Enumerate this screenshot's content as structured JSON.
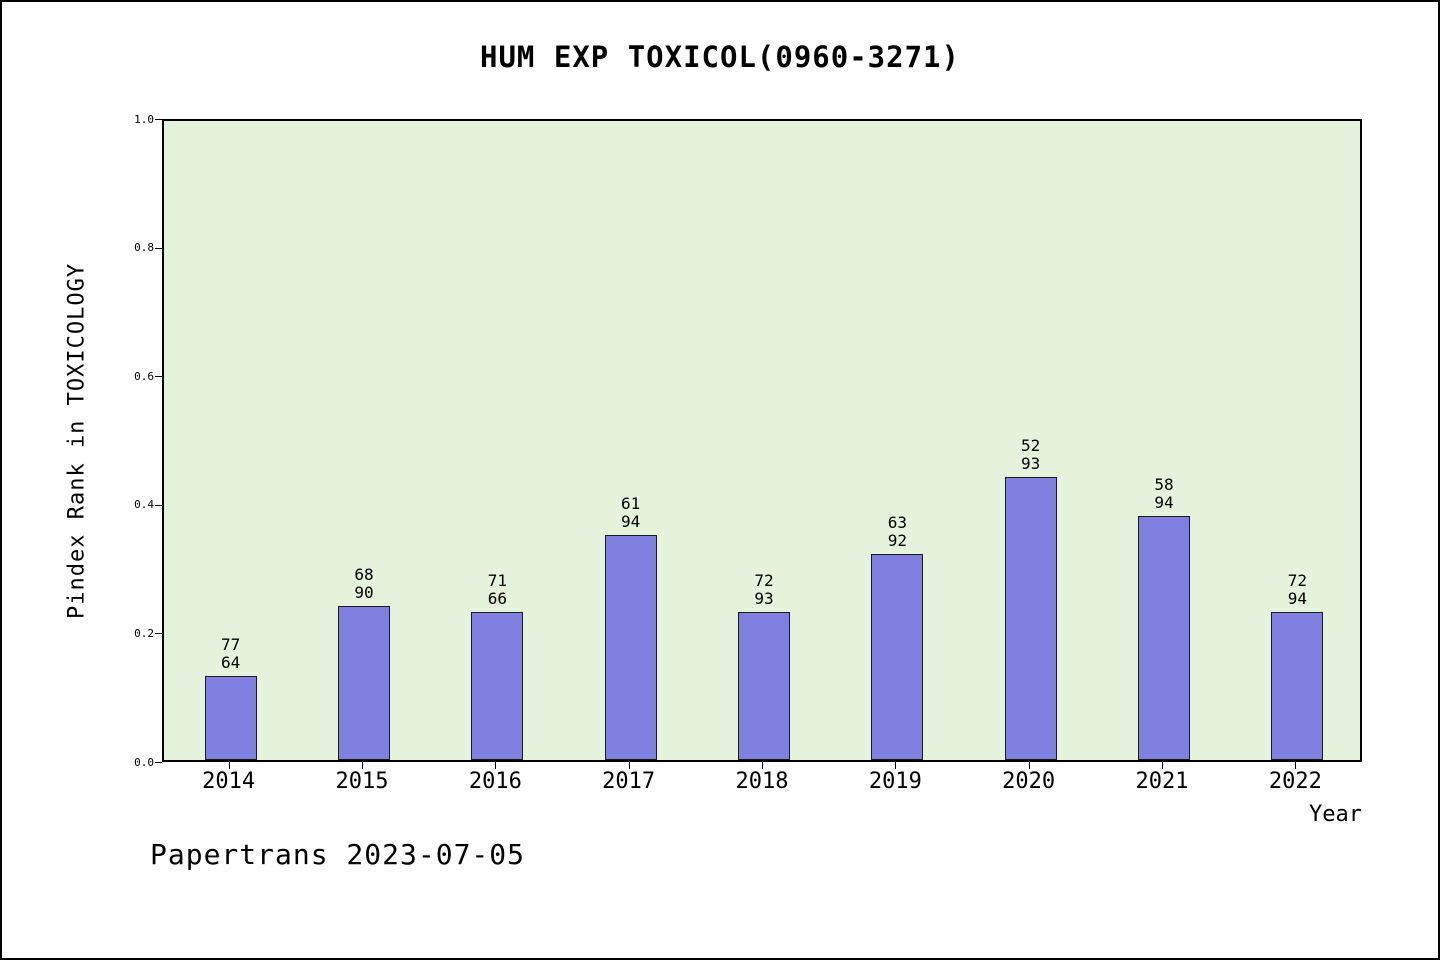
{
  "title": "HUM EXP TOXICOL(0960-3271)",
  "footer": "Papertrans 2023-07-05",
  "axes": {
    "ylabel": "Pindex Rank in TOXICOLOGY",
    "xlabel": "Year"
  },
  "colors": {
    "bar_fill": "#8080e0",
    "bar_edge": "#1a1a1a",
    "plot_background": "#e5f2dc",
    "page_background": "#ffffff"
  },
  "chart_data": {
    "type": "bar",
    "title": "HUM EXP TOXICOL(0960-3271)",
    "xlabel": "Year",
    "ylabel": "Pindex Rank in TOXICOLOGY",
    "categories": [
      "2014",
      "2015",
      "2016",
      "2017",
      "2018",
      "2019",
      "2020",
      "2021",
      "2022"
    ],
    "values": [
      0.13,
      0.24,
      0.23,
      0.35,
      0.23,
      0.32,
      0.44,
      0.38,
      0.23
    ],
    "bar_labels_top": [
      "77",
      "68",
      "71",
      "61",
      "72",
      "63",
      "52",
      "58",
      "72"
    ],
    "bar_labels_bottom": [
      "64",
      "90",
      "66",
      "94",
      "93",
      "92",
      "93",
      "94",
      "94"
    ],
    "ylim": [
      0.0,
      1.0
    ],
    "y_ticks": [
      "0.0",
      "0.2",
      "0.4",
      "0.6",
      "0.8",
      "1.0"
    ],
    "grid": false,
    "legend": false
  }
}
